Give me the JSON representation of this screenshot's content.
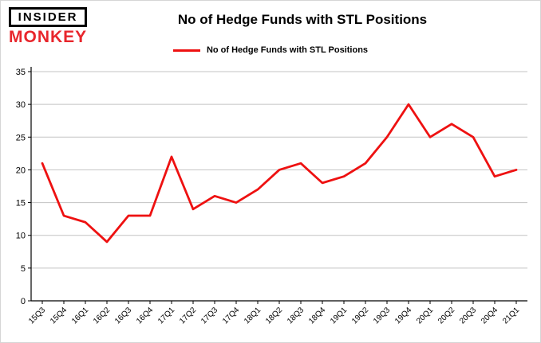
{
  "header": {
    "logo_line1": "INSIDER",
    "logo_line2": "MONKEY",
    "title": "No of Hedge Funds with STL Positions",
    "legend_label": "No of Hedge Funds with STL Positions"
  },
  "colors": {
    "line": "#ee1111",
    "logo_red": "#e8262c",
    "grid": "#c3c3c3",
    "axis": "#000000",
    "background": "#ffffff"
  },
  "chart_data": {
    "type": "line",
    "title": "No of Hedge Funds with STL Positions",
    "categories": [
      "15Q3",
      "15Q4",
      "16Q1",
      "16Q2",
      "16Q3",
      "16Q4",
      "17Q1",
      "17Q2",
      "17Q3",
      "17Q4",
      "18Q1",
      "18Q2",
      "18Q3",
      "18Q4",
      "19Q1",
      "19Q2",
      "19Q3",
      "19Q4",
      "20Q1",
      "20Q2",
      "20Q3",
      "20Q4",
      "21Q1"
    ],
    "values": [
      21,
      13,
      12,
      9,
      13,
      13,
      22,
      14,
      16,
      15,
      17,
      20,
      21,
      18,
      19,
      21,
      25,
      30,
      25,
      27,
      25,
      19,
      20
    ],
    "xlabel": "",
    "ylabel": "",
    "ylim": [
      0,
      35
    ],
    "yticks": [
      0,
      5,
      10,
      15,
      20,
      25,
      30,
      35
    ],
    "grid": true,
    "legend_position": "top",
    "series_name": "No of Hedge Funds with STL Positions"
  }
}
